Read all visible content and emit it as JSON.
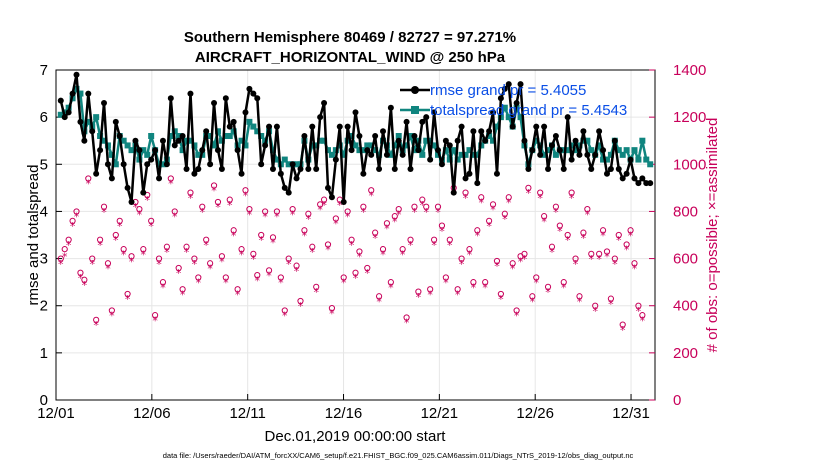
{
  "chart_data": {
    "type": "line",
    "title_line1": "Southern Hemisphere 80469 / 82727 = 97.271%",
    "title_line2": "AIRCRAFT_HORIZONTAL_WIND @ 250 hPa",
    "xlabel": "Dec.01,2019 00:00:00 start",
    "ylabel": "rmse and totalspread",
    "ylabel_right": "# of obs: o=possible; ×=assimilated",
    "footer": "data file: /Users/raeder/DAI/ATM_forcXX/CAM6_setup/f.e21.FHIST_BGC.f09_025.CAM6assim.011/Diags_NTrS_2019-12/obs_diag_output.nc",
    "x_ticks": [
      "12/01",
      "12/06",
      "12/11",
      "12/16",
      "12/21",
      "12/26",
      "12/31"
    ],
    "x_tick_days": [
      0,
      5,
      10,
      15,
      20,
      25,
      30
    ],
    "xlim": [
      0,
      31.25
    ],
    "ylim": [
      0,
      7
    ],
    "y_ticks": [
      "0",
      "1",
      "2",
      "3",
      "4",
      "5",
      "6",
      "7"
    ],
    "ylim_right": [
      0,
      1400
    ],
    "y_ticks_right": [
      "0",
      "200",
      "400",
      "600",
      "800",
      "1000",
      "1200",
      "1400"
    ],
    "colors": {
      "rmse": "#000000",
      "spread": "#10857f",
      "obs": "#c8005a",
      "legend_text": "#0a4ee6",
      "grid": "#e6e6e6"
    },
    "legend": [
      {
        "name": "rmse grand pr = 5.4055",
        "series": "rmse"
      },
      {
        "name": "totalspread grand pr = 5.4543",
        "series": "spread"
      }
    ],
    "series": [
      {
        "name": "rmse",
        "values": [
          6.35,
          6.0,
          6.1,
          6.5,
          6.9,
          5.9,
          5.5,
          6.5,
          5.7,
          4.8,
          5.3,
          6.3,
          5.0,
          4.7,
          5.9,
          5.6,
          5.0,
          4.5,
          4.2,
          5.5,
          5.3,
          4.4,
          5.0,
          5.1,
          5.3,
          4.7,
          5.5,
          5.0,
          6.4,
          5.4,
          5.5,
          5.6,
          4.9,
          6.5,
          4.8,
          4.9,
          5.3,
          5.7,
          5.0,
          6.3,
          5.3,
          4.9,
          6.4,
          5.8,
          5.9,
          5.3,
          4.8,
          6.1,
          6.6,
          6.5,
          6.4,
          5.0,
          5.4,
          5.8,
          4.9,
          5.8,
          4.8,
          4.5,
          4.4,
          5.0,
          4.7,
          4.9,
          5.6,
          4.9,
          5.8,
          4.9,
          6.0,
          6.3,
          4.5,
          4.3,
          5.1,
          5.8,
          4.2,
          5.8,
          5.3,
          6.1,
          5.6,
          4.8,
          5.3,
          5.2,
          5.6,
          4.9,
          5.7,
          5.2,
          6.2,
          4.9,
          5.5,
          5.2,
          5.9,
          4.9,
          5.6,
          5.3,
          5.9,
          6.0,
          5.1,
          6.1,
          5.3,
          5.0,
          5.5,
          5.4,
          4.4,
          5.5,
          5.8,
          4.7,
          4.8,
          5.7,
          4.6,
          5.7,
          5.5,
          5.7,
          6.1,
          4.8,
          6.4,
          6.6,
          6.7,
          5.8,
          6.3,
          6.7,
          5.5,
          4.9,
          5.3,
          5.8,
          5.2,
          5.8,
          4.9,
          5.4,
          5.6,
          5.3,
          4.9,
          6.0,
          5.1,
          5.5,
          5.2,
          5.7,
          5.2,
          4.9,
          5.2,
          5.7,
          5.3,
          4.8,
          4.9,
          5.5,
          4.9,
          4.7,
          4.8,
          5.1,
          4.7,
          4.6,
          4.7,
          4.6,
          4.6
        ]
      },
      {
        "name": "totalspread",
        "values": [
          6.05,
          6.1,
          6.2,
          6.4,
          6.6,
          6.5,
          5.7,
          5.9,
          5.8,
          6.0,
          5.6,
          5.5,
          5.4,
          5.2,
          5.0,
          5.6,
          5.5,
          5.4,
          5.3,
          5.4,
          5.1,
          5.3,
          5.2,
          5.6,
          5.3,
          5.0,
          5.0,
          5.1,
          5.6,
          5.7,
          5.6,
          5.3,
          5.5,
          5.5,
          5.4,
          5.2,
          5.2,
          5.6,
          5.6,
          5.4,
          5.7,
          5.5,
          5.6,
          5.6,
          5.7,
          5.4,
          5.5,
          5.4,
          5.9,
          5.8,
          5.7,
          5.6,
          5.5,
          5.7,
          5.3,
          5.1,
          5.0,
          5.1,
          5.0,
          5.0,
          5.0,
          5.0,
          5.5,
          5.1,
          5.4,
          5.4,
          5.5,
          5.5,
          5.3,
          5.2,
          5.3,
          5.4,
          5.2,
          5.5,
          5.6,
          5.4,
          5.3,
          5.3,
          5.4,
          5.4,
          5.3,
          5.2,
          5.5,
          5.4,
          5.2,
          5.4,
          5.6,
          5.3,
          5.4,
          5.6,
          5.3,
          5.5,
          5.2,
          5.5,
          5.5,
          5.4,
          5.2,
          5.1,
          5.3,
          5.1,
          5.3,
          5.1,
          5.2,
          5.2,
          5.3,
          5.2,
          5.2,
          5.4,
          5.5,
          5.6,
          5.5,
          5.8,
          6.0,
          6.2,
          6.0,
          5.8,
          6.2,
          6.0,
          5.4,
          5.0,
          5.3,
          5.5,
          5.4,
          5.2,
          5.3,
          5.4,
          5.2,
          5.3,
          5.3,
          5.3,
          5.4,
          5.3,
          5.4,
          5.5,
          5.5,
          5.3,
          5.2,
          5.4,
          5.1,
          5.1,
          5.2,
          5.5,
          5.3,
          5.2,
          5.3,
          5.1,
          5.3,
          5.1,
          5.5,
          5.1,
          5.0
        ]
      },
      {
        "name": "possible",
        "values": [
          600,
          640,
          680,
          760,
          800,
          540,
          510,
          940,
          600,
          340,
          680,
          820,
          580,
          380,
          700,
          760,
          640,
          450,
          610,
          840,
          810,
          640,
          870,
          760,
          360,
          600,
          500,
          650,
          940,
          800,
          560,
          470,
          650,
          880,
          600,
          520,
          820,
          680,
          580,
          910,
          840,
          610,
          520,
          850,
          720,
          470,
          640,
          890,
          810,
          620,
          530,
          700,
          800,
          550,
          690,
          800,
          520,
          380,
          600,
          810,
          570,
          420,
          720,
          790,
          650,
          480,
          830,
          850,
          660,
          390,
          770,
          850,
          520,
          800,
          680,
          540,
          630,
          820,
          560,
          890,
          710,
          440,
          640,
          750,
          500,
          780,
          810,
          640,
          350,
          680,
          820,
          460,
          850,
          820,
          470,
          680,
          820,
          740,
          520,
          680,
          900,
          470,
          600,
          880,
          640,
          500,
          720,
          860,
          500,
          760,
          830,
          590,
          450,
          790,
          860,
          580,
          380,
          610,
          620,
          900,
          440,
          520,
          880,
          780,
          480,
          650,
          820,
          740,
          500,
          700,
          880,
          600,
          440,
          710,
          810,
          620,
          400,
          620,
          720,
          630,
          430,
          600,
          700,
          320,
          660,
          720,
          580,
          400,
          360
        ]
      },
      {
        "name": "assimilated",
        "values": [
          580,
          610,
          660,
          740,
          780,
          520,
          490,
          920,
          580,
          320,
          660,
          800,
          560,
          360,
          680,
          740,
          620,
          430,
          590,
          820,
          790,
          620,
          850,
          740,
          340,
          580,
          480,
          630,
          920,
          780,
          540,
          450,
          630,
          860,
          580,
          500,
          800,
          660,
          560,
          890,
          820,
          590,
          500,
          830,
          700,
          450,
          620,
          870,
          790,
          600,
          510,
          680,
          780,
          530,
          670,
          780,
          500,
          360,
          580,
          790,
          550,
          400,
          700,
          770,
          630,
          460,
          810,
          830,
          640,
          370,
          750,
          830,
          500,
          780,
          660,
          520,
          610,
          800,
          540,
          870,
          690,
          420,
          620,
          730,
          480,
          760,
          790,
          620,
          330,
          660,
          800,
          440,
          830,
          800,
          450,
          660,
          800,
          720,
          500,
          660,
          880,
          450,
          580,
          860,
          620,
          480,
          700,
          840,
          480,
          740,
          810,
          570,
          430,
          770,
          840,
          560,
          360,
          590,
          600,
          880,
          420,
          500,
          860,
          760,
          460,
          630,
          800,
          720,
          480,
          680,
          860,
          580,
          420,
          690,
          790,
          600,
          380,
          600,
          700,
          610,
          410,
          580,
          680,
          300,
          640,
          700,
          560,
          380,
          340
        ]
      }
    ]
  }
}
